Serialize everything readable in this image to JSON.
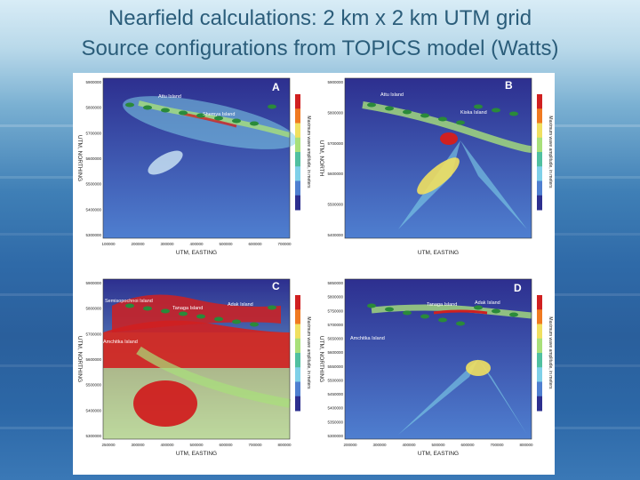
{
  "slide": {
    "title_line1": "Nearfield calculations: 2 km x 2 km UTM grid",
    "title_line2": "Source configurations from TOPICS model (Watts)"
  },
  "colors": {
    "title": "#2b5d7a",
    "ocean_deep": "#2d2f8f",
    "ocean_mid": "#4f7fd0",
    "wave_cyan": "#7fd0e8",
    "wave_green": "#a8e07a",
    "wave_yellow": "#f0e060",
    "wave_red": "#d02020",
    "land": "#2a8a3a"
  },
  "panels": [
    {
      "letter": "A",
      "islands": [
        "Attu Island",
        "Shemya Island"
      ],
      "x_label": "UTM, EASTING",
      "y_label": "UTM, NORTHING",
      "colorbar_label": "Maximum wave amplitude, in meters",
      "x_ticks": [
        "100000",
        "200000",
        "300000",
        "400000",
        "500000",
        "600000",
        "700000"
      ],
      "y_ticks": [
        "5900000",
        "5800000",
        "5700000",
        "5600000",
        "5500000",
        "5400000",
        "5300000"
      ]
    },
    {
      "letter": "B",
      "islands": [
        "Attu Island",
        "Kiska Island"
      ],
      "x_label": "UTM, EASTING",
      "y_label": "UTM, NORTH",
      "colorbar_label": "Maximum wave amplitude, in meters",
      "x_ticks": [],
      "y_ticks": [
        "5900000",
        "5800000",
        "5700000",
        "5600000",
        "5500000",
        "5400000"
      ]
    },
    {
      "letter": "C",
      "islands": [
        "Semisopochnoi Island",
        "Tanaga Island",
        "Adak Island",
        "Amchitka Island"
      ],
      "x_label": "UTM, EASTING",
      "y_label": "UTM, NORTHING",
      "colorbar_label": "Maximum wave amplitude, in meters",
      "x_ticks": [
        "250000",
        "300000",
        "400000",
        "500000",
        "600000",
        "700000",
        "800000"
      ],
      "y_ticks": [
        "5900000",
        "5800000",
        "5700000",
        "5600000",
        "5500000",
        "5400000",
        "5300000"
      ]
    },
    {
      "letter": "D",
      "islands": [
        "Tanaga Island",
        "Adak Island",
        "Amchitka Island"
      ],
      "x_label": "UTM, EASTING",
      "y_label": "UTM, NORTHING",
      "colorbar_label": "Maximum wave amplitude, in meters",
      "x_ticks": [
        "200000",
        "300000",
        "400000",
        "500000",
        "600000",
        "700000",
        "800000"
      ],
      "y_ticks": [
        "5850000",
        "5800000",
        "5750000",
        "5700000",
        "5650000",
        "5600000",
        "5550000",
        "5500000",
        "5450000",
        "5400000",
        "5350000",
        "5300000"
      ]
    }
  ]
}
